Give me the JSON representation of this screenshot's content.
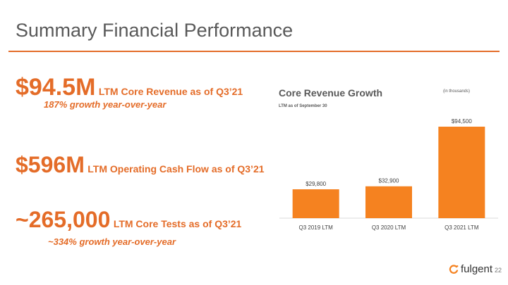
{
  "slide": {
    "title": "Summary Financial Performance",
    "page_number": "22",
    "accent_color": "#e46c28"
  },
  "metrics": [
    {
      "value": "$94.5M",
      "label": "LTM Core Revenue as of Q3’21",
      "note": "187% growth year-over-year"
    },
    {
      "value": "$596M",
      "label": "LTM Operating Cash Flow as of Q3’21",
      "note": ""
    },
    {
      "value": "~265,000",
      "label": "LTM Core Tests as of Q3’21",
      "note": "~334% growth year-over-year"
    }
  ],
  "chart_data": {
    "type": "bar",
    "title": "Core Revenue Growth",
    "subtitle": "LTM as of September 30",
    "units_note": "(in thousands)",
    "categories": [
      "Q3 2019 LTM",
      "Q3 2020 LTM",
      "Q3 2021 LTM"
    ],
    "values": [
      29800,
      32900,
      94500
    ],
    "value_labels": [
      "$29,800",
      "$32,900",
      "$94,500"
    ],
    "bar_color": "#f58220",
    "grid": false,
    "legend": "none"
  },
  "logo": {
    "text": "fulgent",
    "icon": "fulgent-logo-icon"
  }
}
